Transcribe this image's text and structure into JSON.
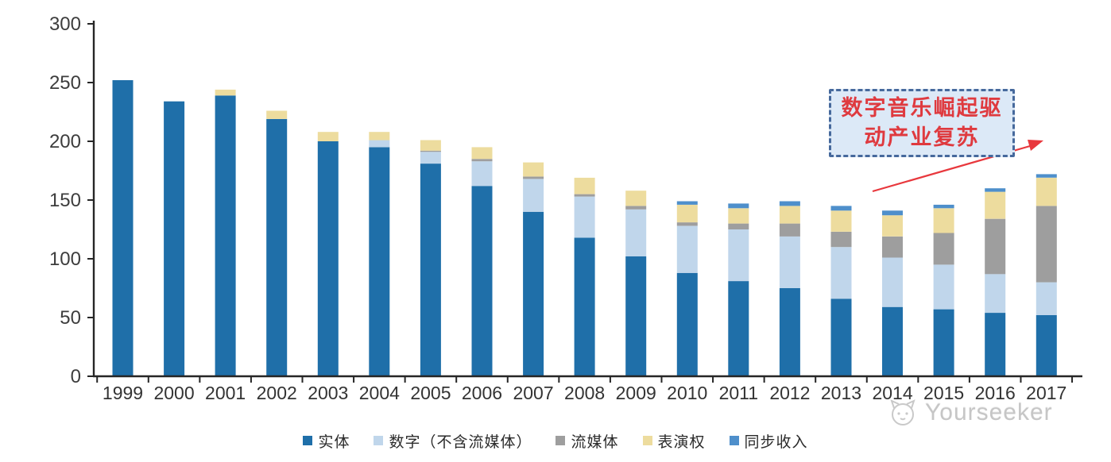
{
  "chart_data": {
    "type": "bar",
    "stacked": true,
    "grid": false,
    "legend_position": "bottom",
    "ylim": [
      0,
      300
    ],
    "yticks": [
      0,
      50,
      100,
      150,
      200,
      250,
      300
    ],
    "categories": [
      "1999",
      "2000",
      "2001",
      "2002",
      "2003",
      "2004",
      "2005",
      "2006",
      "2007",
      "2008",
      "2009",
      "2010",
      "2011",
      "2012",
      "2013",
      "2014",
      "2015",
      "2016",
      "2017"
    ],
    "series": [
      {
        "name": "实体",
        "color": "#1f6fa9",
        "values": [
          252,
          234,
          239,
          219,
          200,
          195,
          181,
          162,
          140,
          118,
          102,
          88,
          81,
          75,
          66,
          59,
          57,
          54,
          52
        ]
      },
      {
        "name": "数字（不含流媒体）",
        "color": "#c0d6eb",
        "values": [
          0,
          0,
          0,
          0,
          0,
          6,
          10,
          21,
          28,
          35,
          40,
          40,
          44,
          44,
          44,
          42,
          38,
          33,
          28
        ]
      },
      {
        "name": "流媒体",
        "color": "#9e9e9e",
        "values": [
          0,
          0,
          0,
          0,
          0,
          0,
          1,
          2,
          2,
          2,
          3,
          3,
          5,
          11,
          13,
          18,
          27,
          47,
          65
        ]
      },
      {
        "name": "表演权",
        "color": "#eddc9e",
        "values": [
          0,
          0,
          5,
          7,
          8,
          7,
          9,
          10,
          12,
          14,
          13,
          15,
          13,
          15,
          18,
          18,
          21,
          23,
          24
        ]
      },
      {
        "name": "同步收入",
        "color": "#4e8fcb",
        "values": [
          0,
          0,
          0,
          0,
          0,
          0,
          0,
          0,
          0,
          0,
          0,
          3,
          4,
          4,
          4,
          4,
          3,
          3,
          3
        ]
      }
    ]
  },
  "annotation": {
    "text": "数字音乐崛起驱动产业复苏",
    "line1": "数字音乐崛起驱",
    "line2": "动产业复苏",
    "text_color": "#df3a3f",
    "box_fill": "#dce9f7",
    "box_border": "#46699c",
    "arrow_color": "#e8383d"
  },
  "watermark": {
    "brand": "Yourseeker"
  }
}
